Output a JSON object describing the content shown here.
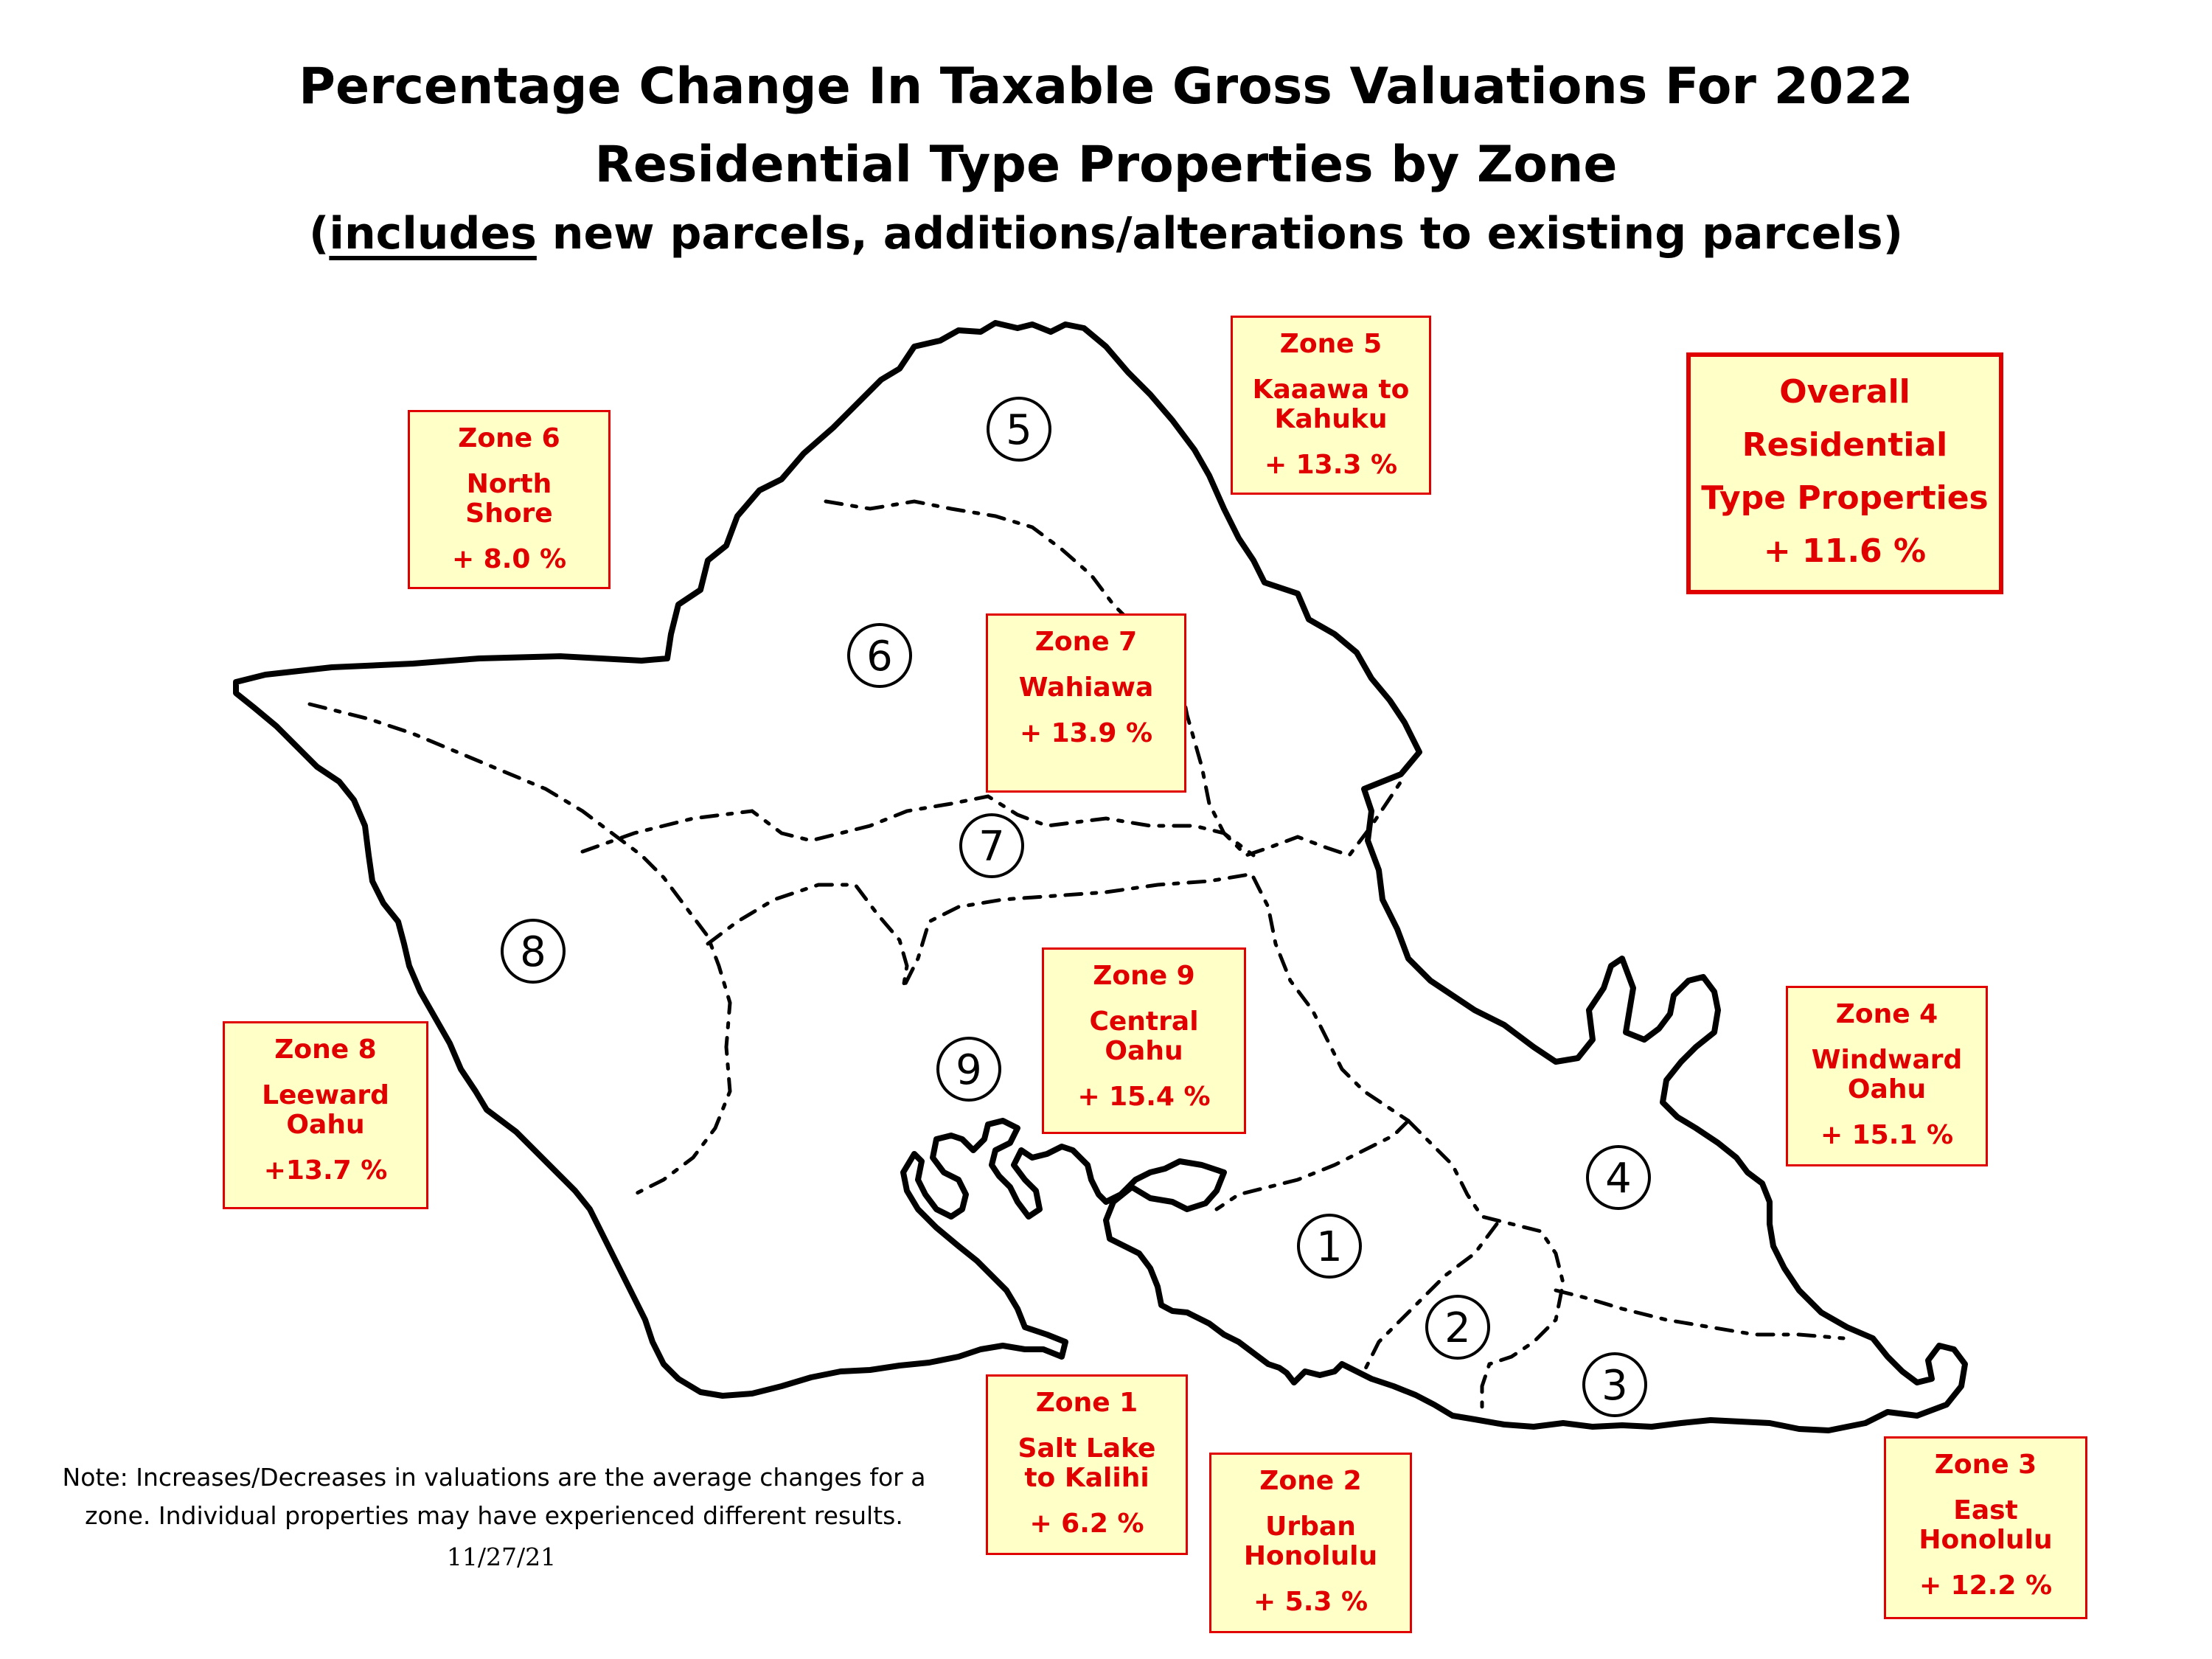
{
  "title": {
    "line1": "Percentage Change In Taxable  Gross  Valuations  For  2022",
    "line2": "Residential Type Properties by Zone",
    "line3_open": "(",
    "line3_underlined": "includes",
    "line3_rest": " new parcels, additions/alterations to existing parcels)"
  },
  "map_labels": [
    "1",
    "2",
    "3",
    "4",
    "5",
    "6",
    "7",
    "8",
    "9"
  ],
  "zones": [
    {
      "title": "Zone  5",
      "name_l1": "Kaaawa to",
      "name_l2": "Kahuku",
      "change": "+ 13.3 %"
    },
    {
      "title": "Zone  6",
      "name_l1": "North",
      "name_l2": "Shore",
      "change": "+ 8.0 %"
    },
    {
      "title": "Zone  7",
      "name_l1": "Wahiawa",
      "name_l2": "",
      "change": "+ 13.9 %"
    },
    {
      "title": "Zone  9",
      "name_l1": "Central",
      "name_l2": "Oahu",
      "change": "+ 15.4 %"
    },
    {
      "title": "Zone  8",
      "name_l1": "Leeward",
      "name_l2": "Oahu",
      "change": "+13.7 %"
    },
    {
      "title": "Zone  4",
      "name_l1": "Windward",
      "name_l2": "Oahu",
      "change": "+ 15.1 %"
    },
    {
      "title": "Zone  1",
      "name_l1": "Salt Lake",
      "name_l2": "to Kalihi",
      "change": "+ 6.2 %"
    },
    {
      "title": "Zone  2",
      "name_l1": "Urban",
      "name_l2": "Honolulu",
      "change": "+ 5.3 %"
    },
    {
      "title": "Zone  3",
      "name_l1": "East",
      "name_l2": "Honolulu",
      "change": "+ 12.2 %"
    }
  ],
  "overall": {
    "line1": "Overall",
    "line2": "Residential",
    "line3": "Type Properties",
    "change": "+ 11.6 %"
  },
  "note": {
    "line1": "Note: Increases/Decreases in valuations are the average changes for a",
    "line2": "zone. Individual properties may have experienced different results."
  },
  "date": "11/27/21",
  "colors": {
    "box_fill": "#ffffc8",
    "box_border": "#e00000",
    "text_red": "#e00000"
  }
}
